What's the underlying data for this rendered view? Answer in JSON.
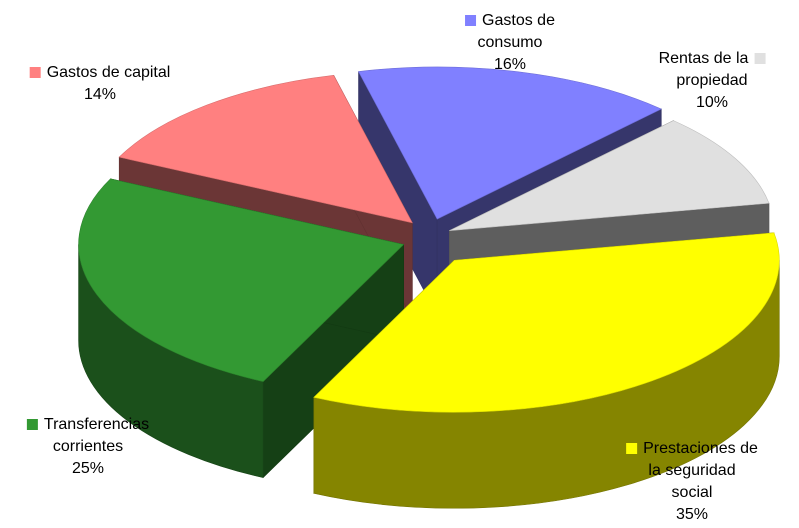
{
  "chart_data": {
    "type": "pie",
    "variant": "3d-exploded",
    "slices": [
      {
        "label": "Gastos de consumo",
        "label_lines": [
          "Gastos de",
          "consumo"
        ],
        "value": 16,
        "value_label": "16%",
        "color": "#8080ff"
      },
      {
        "label": "Rentas de la propiedad",
        "label_lines": [
          "Rentas de la",
          "propiedad"
        ],
        "value": 10,
        "value_label": "10%",
        "color": "#e0e0e0"
      },
      {
        "label": "Prestaciones de la seguridad social",
        "label_lines": [
          "Prestaciones de",
          "la seguridad",
          "social"
        ],
        "value": 35,
        "value_label": "35%",
        "color": "#ffff00"
      },
      {
        "label": "Transferencias corrientes",
        "label_lines": [
          "Transferencias",
          "corrientes"
        ],
        "value": 25,
        "value_label": "25%",
        "color": "#339933"
      },
      {
        "label": "Gastos de capital",
        "label_lines": [
          "Gastos de capital"
        ],
        "value": 14,
        "value_label": "14%",
        "color": "#ff8080"
      }
    ]
  }
}
